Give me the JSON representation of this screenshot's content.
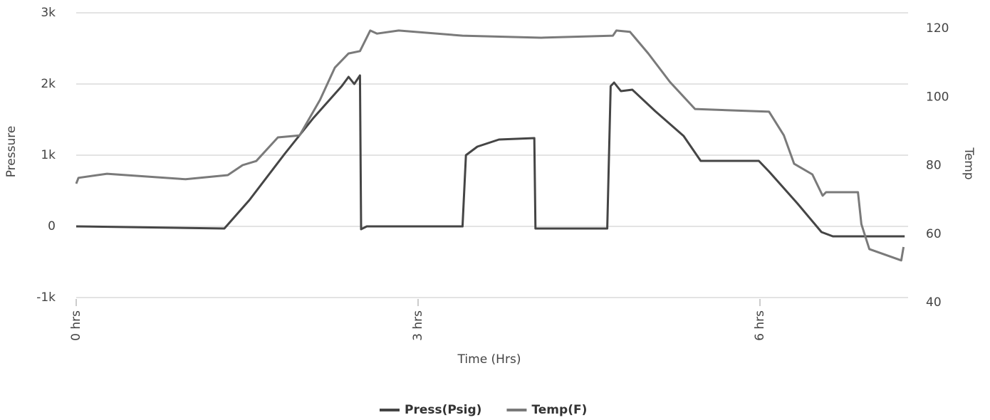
{
  "chart_data": {
    "type": "line",
    "x_label": "Time (Hrs)",
    "y_label": "Pressure",
    "y2_label": "Temp",
    "xlim": [
      0,
      7.3
    ],
    "xticks": [
      {
        "value": 0,
        "label": "0 hrs"
      },
      {
        "value": 3,
        "label": "3 hrs"
      },
      {
        "value": 6,
        "label": "6 hrs"
      }
    ],
    "ylim": [
      -1000,
      3000
    ],
    "yticks": [
      {
        "value": -1000,
        "label": "-1k"
      },
      0,
      {
        "value": 1000,
        "label": "1k"
      },
      {
        "value": 2000,
        "label": "2k"
      },
      {
        "value": 3000,
        "label": "3k"
      }
    ],
    "y2lim": [
      40,
      120
    ],
    "y2ticks": [
      40,
      60,
      80,
      100,
      120
    ],
    "grid": true,
    "legend": "bottom",
    "series": [
      {
        "name": "Press(Psig)",
        "color": "#454545",
        "x": [
          0,
          1.3,
          1.52,
          1.83,
          2.08,
          2.33,
          2.39,
          2.44,
          2.49,
          2.5,
          2.55,
          3.39,
          3.42,
          3.52,
          3.71,
          4.02,
          4.03,
          4.66,
          4.69,
          4.72,
          4.78,
          4.88,
          5.08,
          5.33,
          5.48,
          5.99,
          6.08,
          6.33,
          6.54,
          6.64,
          7.27
        ],
        "values": [
          0,
          -30,
          370,
          1020,
          1520,
          1970,
          2100,
          2000,
          2120,
          -40,
          0,
          0,
          1000,
          1120,
          1220,
          1240,
          -30,
          -30,
          1970,
          2020,
          1900,
          1920,
          1620,
          1270,
          920,
          920,
          770,
          320,
          -80,
          -140,
          -140
        ]
      },
      {
        "name": "Temp(F)",
        "color": "#7a7a7a",
        "axis": "y2",
        "x": [
          0,
          0.02,
          0.27,
          0.96,
          1.33,
          1.46,
          1.58,
          1.77,
          1.96,
          2.14,
          2.27,
          2.39,
          2.49,
          2.58,
          2.64,
          2.83,
          3.39,
          4.08,
          4.71,
          4.74,
          4.86,
          5.02,
          5.21,
          5.43,
          6.08,
          6.21,
          6.3,
          6.46,
          6.55,
          6.58,
          6.86,
          6.89,
          6.96,
          7.24,
          7.26
        ],
        "values": [
          74.7,
          76.4,
          77.6,
          76,
          77.2,
          80.1,
          81.3,
          88.2,
          88.8,
          99.2,
          108.6,
          112.7,
          113.4,
          119.4,
          118.5,
          119.4,
          117.9,
          117.3,
          117.9,
          119.4,
          119,
          112.7,
          104.4,
          96.5,
          95.7,
          88.8,
          80.5,
          77.4,
          71.2,
          72.2,
          72.2,
          62.9,
          55.6,
          52.3,
          56.2
        ]
      }
    ]
  }
}
